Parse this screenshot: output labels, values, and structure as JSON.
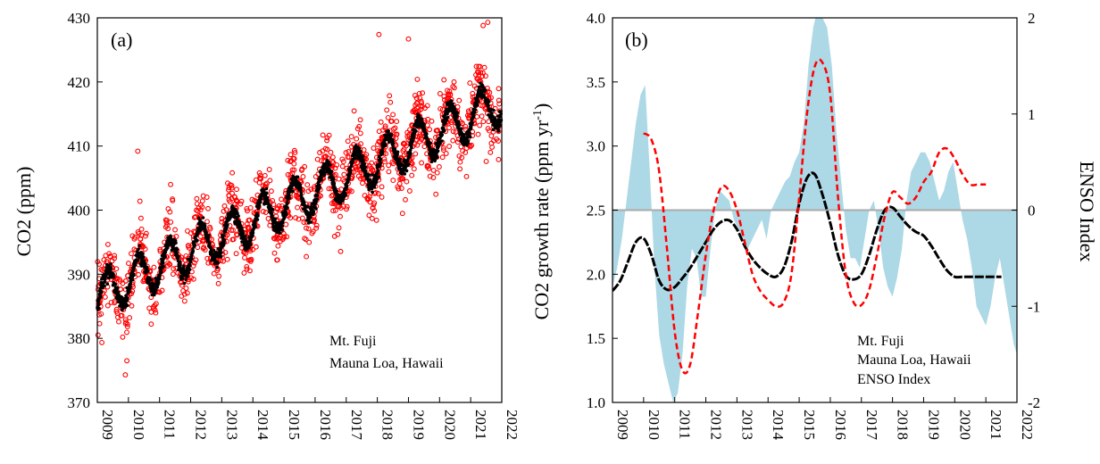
{
  "colors": {
    "fuji": "#ff0000",
    "mauna_loa": "#000000",
    "enso_fill": "#add8e6",
    "enso_text": "#4a9ab5",
    "zero_line": "#aaaaaa"
  },
  "chart_data": [
    {
      "type": "scatter",
      "panel_label": "(a)",
      "ylabel": "CO2 (ppm)",
      "xlim": [
        2009,
        2022
      ],
      "ylim": [
        370,
        430
      ],
      "yticks": [
        370,
        380,
        390,
        400,
        410,
        420,
        430
      ],
      "xticks": [
        2009,
        2010,
        2011,
        2012,
        2013,
        2014,
        2015,
        2016,
        2017,
        2018,
        2019,
        2020,
        2021,
        2022
      ],
      "grid": false,
      "legend_position": "bottom-right",
      "series": [
        {
          "name": "Mt. Fuji",
          "marker": "open-circle",
          "trend": {
            "x0": 2009,
            "y0": 386.5,
            "slope": 2.35
          },
          "seasonal_amplitude": 3.8,
          "scatter_sd": 2.6,
          "outliers": [
            [
              2009.9,
              374.3
            ],
            [
              2009.95,
              376.5
            ],
            [
              2010.3,
              409.2
            ],
            [
              2018.05,
              427.4
            ],
            [
              2019.0,
              426.7
            ],
            [
              2021.4,
              428.8
            ],
            [
              2021.55,
              429.3
            ],
            [
              2021.5,
              407.6
            ]
          ]
        },
        {
          "name": "Mauna Loa, Hawaii",
          "marker": "filled-dot",
          "trend": {
            "x0": 2009,
            "y0": 386.6,
            "slope": 2.33
          },
          "seasonal_amplitude": 3.2,
          "scatter_sd": 0.55
        }
      ]
    },
    {
      "type": "line",
      "panel_label": "(b)",
      "ylabel": "CO2 growth rate (ppm yr",
      "ylabel_superscript": "-1",
      "ylabel_suffix": ")",
      "y2label": "ENSO Index",
      "xlim": [
        2009,
        2022
      ],
      "ylim": [
        1.0,
        4.0
      ],
      "y2lim": [
        -2,
        2
      ],
      "yticks": [
        "1.0",
        "1.5",
        "2.0",
        "2.5",
        "3.0",
        "3.5",
        "4.0"
      ],
      "y2ticks": [
        "-2",
        "-1",
        "0",
        "1",
        "2"
      ],
      "xticks": [
        2009,
        2010,
        2011,
        2012,
        2013,
        2014,
        2015,
        2016,
        2017,
        2018,
        2019,
        2020,
        2021,
        2022
      ],
      "grid": false,
      "legend_position": "bottom-right",
      "series": [
        {
          "name": "Mt. Fuji",
          "style": "dashed",
          "x": [
            2010.0,
            2010.25,
            2010.5,
            2010.75,
            2011.0,
            2011.25,
            2011.5,
            2011.75,
            2012.0,
            2012.25,
            2012.5,
            2012.75,
            2013.0,
            2013.25,
            2013.5,
            2013.75,
            2014.0,
            2014.25,
            2014.5,
            2014.75,
            2015.0,
            2015.25,
            2015.5,
            2015.75,
            2016.0,
            2016.25,
            2016.5,
            2016.75,
            2017.0,
            2017.25,
            2017.5,
            2017.75,
            2018.0,
            2018.25,
            2018.5,
            2018.75,
            2019.0,
            2019.25,
            2019.5,
            2019.75,
            2020.0,
            2020.25,
            2020.5,
            2020.75,
            2021.0
          ],
          "values": [
            3.1,
            3.05,
            2.8,
            2.2,
            1.55,
            1.25,
            1.3,
            1.7,
            2.15,
            2.5,
            2.68,
            2.65,
            2.5,
            2.25,
            2.0,
            1.87,
            1.8,
            1.75,
            1.78,
            2.0,
            2.6,
            3.25,
            3.62,
            3.65,
            3.4,
            2.6,
            2.0,
            1.78,
            1.76,
            1.88,
            2.15,
            2.45,
            2.64,
            2.6,
            2.55,
            2.6,
            2.72,
            2.8,
            2.95,
            2.98,
            2.9,
            2.78,
            2.7,
            2.7,
            2.7
          ]
        },
        {
          "name": "Mauna Loa, Hawaii",
          "style": "solid-dotted",
          "x": [
            2009.0,
            2009.25,
            2009.5,
            2009.75,
            2010.0,
            2010.25,
            2010.5,
            2010.75,
            2011.0,
            2011.25,
            2011.5,
            2011.75,
            2012.0,
            2012.25,
            2012.5,
            2012.75,
            2013.0,
            2013.25,
            2013.5,
            2013.75,
            2014.0,
            2014.25,
            2014.5,
            2014.75,
            2015.0,
            2015.25,
            2015.5,
            2015.75,
            2016.0,
            2016.25,
            2016.5,
            2016.75,
            2017.0,
            2017.25,
            2017.5,
            2017.75,
            2018.0,
            2018.25,
            2018.5,
            2018.75,
            2019.0,
            2019.25,
            2019.5,
            2019.75,
            2020.0,
            2020.25,
            2020.5,
            2020.75,
            2021.0,
            2021.25,
            2021.5
          ],
          "values": [
            1.87,
            1.95,
            2.1,
            2.25,
            2.28,
            2.15,
            1.95,
            1.88,
            1.9,
            1.97,
            2.05,
            2.15,
            2.25,
            2.35,
            2.41,
            2.42,
            2.35,
            2.22,
            2.12,
            2.05,
            2.0,
            1.98,
            2.05,
            2.25,
            2.55,
            2.75,
            2.78,
            2.62,
            2.4,
            2.15,
            1.99,
            1.96,
            2.0,
            2.15,
            2.35,
            2.5,
            2.52,
            2.45,
            2.38,
            2.33,
            2.3,
            2.22,
            2.12,
            2.03,
            1.98,
            1.98,
            1.98,
            1.98,
            1.98,
            1.98,
            1.98
          ]
        },
        {
          "name": "ENSO Index",
          "style": "filled-area",
          "axis": "right",
          "x": [
            2009.0,
            2009.15,
            2009.3,
            2009.45,
            2009.6,
            2009.75,
            2009.9,
            2010.05,
            2010.2,
            2010.35,
            2010.5,
            2010.65,
            2010.8,
            2010.95,
            2011.1,
            2011.25,
            2011.4,
            2011.55,
            2011.7,
            2011.85,
            2012.0,
            2012.15,
            2012.3,
            2012.45,
            2012.6,
            2012.75,
            2012.9,
            2013.05,
            2013.2,
            2013.35,
            2013.5,
            2013.65,
            2013.8,
            2013.95,
            2014.1,
            2014.25,
            2014.4,
            2014.55,
            2014.7,
            2014.85,
            2015.0,
            2015.15,
            2015.3,
            2015.45,
            2015.6,
            2015.75,
            2015.9,
            2016.05,
            2016.2,
            2016.35,
            2016.5,
            2016.65,
            2016.8,
            2016.95,
            2017.1,
            2017.25,
            2017.4,
            2017.55,
            2017.7,
            2017.85,
            2018.0,
            2018.15,
            2018.3,
            2018.45,
            2018.6,
            2018.75,
            2018.9,
            2019.05,
            2019.2,
            2019.35,
            2019.5,
            2019.65,
            2019.8,
            2019.95,
            2020.1,
            2020.25,
            2020.4,
            2020.55,
            2020.7,
            2020.85,
            2021.0,
            2021.15,
            2021.3,
            2021.45,
            2021.6,
            2021.75,
            2021.9,
            2022.0
          ],
          "values": [
            -0.8,
            -0.6,
            -0.3,
            0.1,
            0.5,
            0.9,
            1.2,
            1.3,
            0.4,
            -0.6,
            -1.3,
            -1.6,
            -1.8,
            -2.0,
            -1.9,
            -1.5,
            -0.8,
            -0.4,
            -0.5,
            -0.9,
            -0.9,
            -0.4,
            0.0,
            0.2,
            0.15,
            0.1,
            -0.1,
            -0.2,
            -0.3,
            -0.4,
            -0.3,
            -0.2,
            -0.1,
            -0.3,
            0.0,
            0.1,
            0.2,
            0.3,
            0.35,
            0.5,
            0.6,
            0.9,
            1.5,
            1.9,
            2.1,
            2.0,
            1.9,
            1.5,
            0.8,
            0.3,
            -0.2,
            -0.5,
            -0.5,
            -0.6,
            -0.3,
            0.0,
            0.1,
            -0.2,
            -0.6,
            -0.8,
            -0.9,
            -0.7,
            -0.4,
            0.1,
            0.4,
            0.5,
            0.6,
            0.6,
            0.5,
            0.3,
            0.1,
            0.2,
            0.4,
            0.5,
            0.2,
            -0.1,
            -0.3,
            -0.6,
            -1.0,
            -1.1,
            -1.2,
            -1.0,
            -0.7,
            -0.5,
            -0.8,
            -1.1,
            -1.4,
            -1.5
          ]
        }
      ]
    }
  ]
}
